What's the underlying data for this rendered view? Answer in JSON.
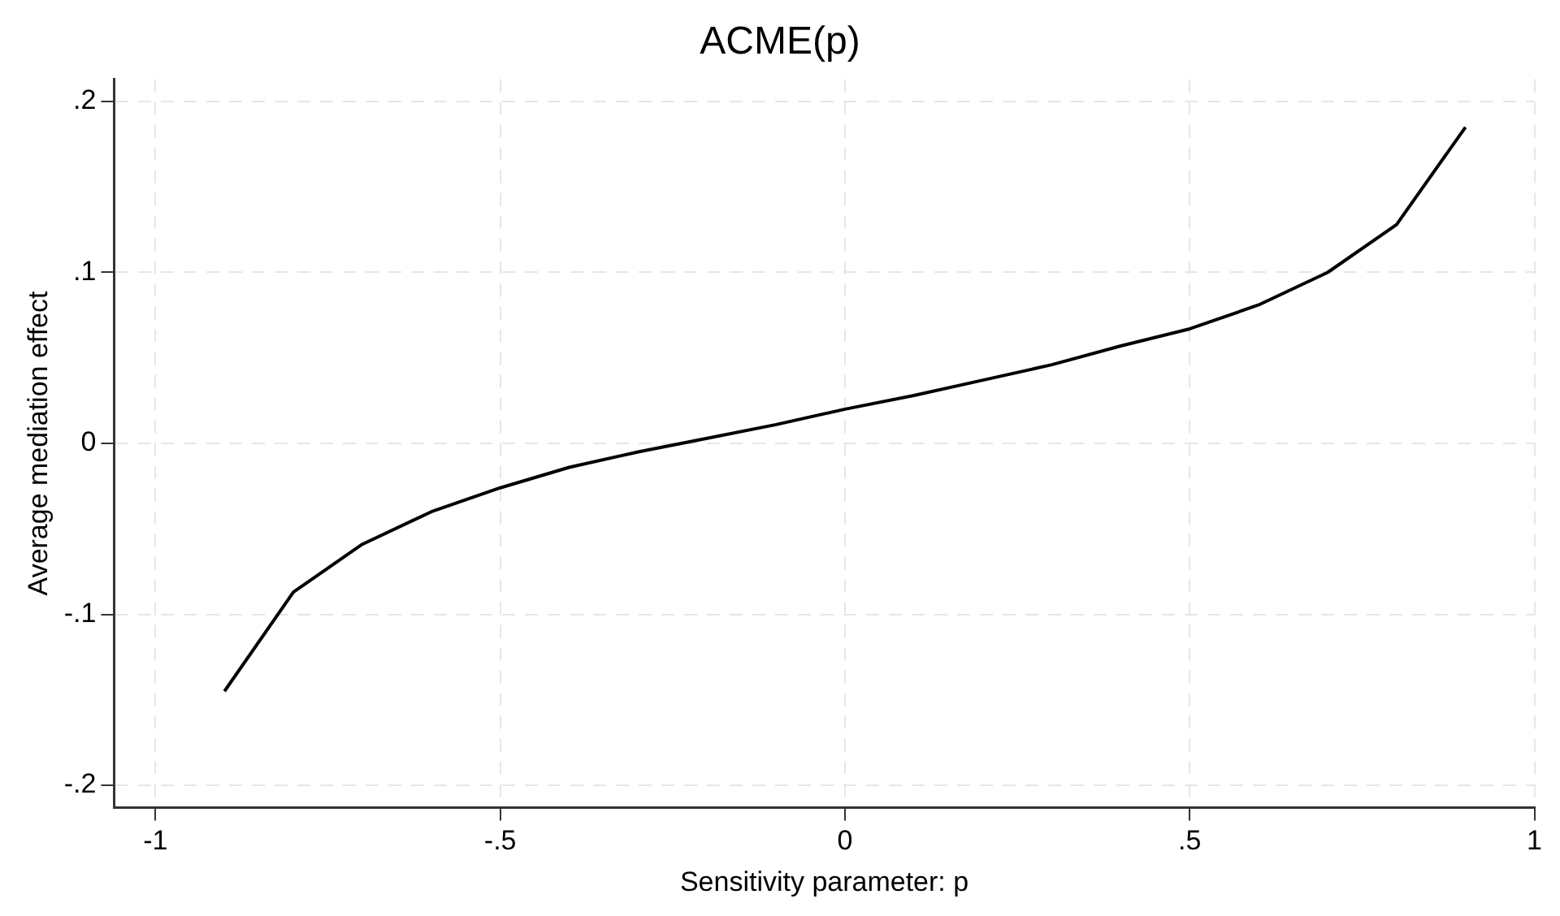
{
  "chart_data": {
    "type": "line",
    "title": "ACME(p)",
    "xlabel": "Sensitivity parameter: p",
    "ylabel": "Average mediation effect",
    "x": [
      -0.9,
      -0.8,
      -0.7,
      -0.6,
      -0.5,
      -0.4,
      -0.3,
      -0.2,
      -0.1,
      0,
      0.1,
      0.2,
      0.3,
      0.4,
      0.5,
      0.6,
      0.7,
      0.8,
      0.9
    ],
    "series": [
      {
        "color": "#000000",
        "values": [
          -0.145,
          -0.087,
          -0.059,
          -0.04,
          -0.026,
          -0.014,
          -0.005,
          0.003,
          0.011,
          0.02,
          0.028,
          0.037,
          0.046,
          0.057,
          0.067,
          0.081,
          0.1,
          0.128,
          0.185
        ]
      }
    ],
    "xlim": [
      -1.06,
      1
    ],
    "ylim": [
      -0.213,
      0.213
    ],
    "xticks": [
      {
        "value": -1,
        "label": "-1"
      },
      {
        "value": -0.5,
        "label": "-.5"
      },
      0,
      {
        "value": 0.5,
        "label": ".5"
      },
      1
    ],
    "yticks": [
      {
        "value": -0.2,
        "label": "-.2"
      },
      {
        "value": -0.1,
        "label": "-.1"
      },
      0,
      {
        "value": 0.1,
        "label": ".1"
      },
      {
        "value": 0.2,
        "label": ".2"
      }
    ],
    "grid": true,
    "legend": false,
    "marker": "none",
    "line_style": "solid"
  }
}
